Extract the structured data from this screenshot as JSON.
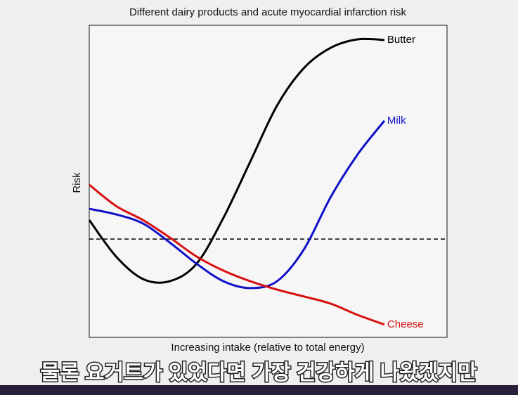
{
  "chart_data": {
    "type": "line",
    "title": "Different dairy products and acute myocardial infarction risk",
    "x_label": "Increasing intake (relative to total energy)",
    "y_label": "Risk",
    "xlim": [
      0,
      10
    ],
    "ylim": [
      0,
      10
    ],
    "x": [
      0,
      0.75,
      1.5,
      2.25,
      3,
      3.75,
      4.5,
      5.25,
      6,
      6.75,
      7.5,
      8.25
    ],
    "reference_line": {
      "value": 3.15,
      "color": "#000000",
      "dashed": true
    },
    "series": [
      {
        "name": "Butter",
        "color": "#000000",
        "values": [
          3.76,
          2.59,
          1.87,
          1.8,
          2.36,
          3.83,
          5.63,
          7.43,
          8.63,
          9.28,
          9.55,
          9.53
        ]
      },
      {
        "name": "Milk",
        "color": "#1010c8",
        "values": [
          4.12,
          3.94,
          3.65,
          3.04,
          2.36,
          1.8,
          1.58,
          1.8,
          2.82,
          4.5,
          5.86,
          6.94
        ]
      },
      {
        "name": "Cheese",
        "color": "#d81010",
        "values": [
          4.89,
          4.21,
          3.76,
          3.2,
          2.59,
          2.14,
          1.8,
          1.53,
          1.31,
          1.08,
          0.72,
          0.41
        ]
      }
    ]
  },
  "caption": "물론 요거트가 있었다면 가장 건강하게 나왔겠지만"
}
